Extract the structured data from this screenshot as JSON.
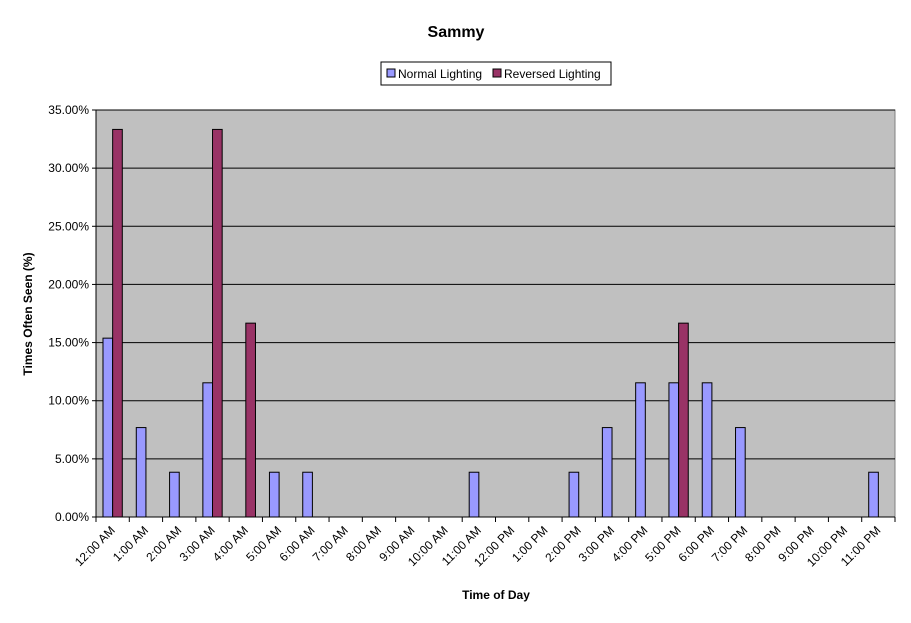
{
  "chart_data": {
    "type": "bar",
    "title": "Sammy",
    "xlabel": "Time of Day",
    "ylabel": "Times Often Seen (%)",
    "ylim": [
      0,
      35
    ],
    "y_ticks": [
      "0.00%",
      "5.00%",
      "10.00%",
      "15.00%",
      "20.00%",
      "25.00%",
      "30.00%",
      "35.00%"
    ],
    "grid": true,
    "legend_position": "top-center",
    "plot_background": "#c0c0c0",
    "categories": [
      "12:00 AM",
      "1:00 AM",
      "2:00 AM",
      "3:00 AM",
      "4:00 AM",
      "5:00 AM",
      "6:00 AM",
      "7:00 AM",
      "8:00 AM",
      "9:00 AM",
      "10:00 AM",
      "11:00 AM",
      "12:00 PM",
      "1:00 PM",
      "2:00 PM",
      "3:00 PM",
      "4:00 PM",
      "5:00 PM",
      "6:00 PM",
      "7:00 PM",
      "8:00 PM",
      "9:00 PM",
      "10:00 PM",
      "11:00 PM"
    ],
    "series": [
      {
        "name": "Normal Lighting",
        "color": "#9999ff",
        "values": [
          15.38,
          7.69,
          3.85,
          11.54,
          0,
          3.85,
          3.85,
          0,
          0,
          0,
          0,
          3.85,
          0,
          0,
          3.85,
          7.69,
          11.54,
          11.54,
          11.54,
          7.69,
          0,
          0,
          0,
          3.85
        ]
      },
      {
        "name": "Reversed Lighting",
        "color": "#993366",
        "values": [
          33.33,
          0,
          0,
          33.33,
          16.67,
          0,
          0,
          0,
          0,
          0,
          0,
          0,
          0,
          0,
          0,
          0,
          0,
          16.67,
          0,
          0,
          0,
          0,
          0,
          0
        ]
      }
    ]
  }
}
